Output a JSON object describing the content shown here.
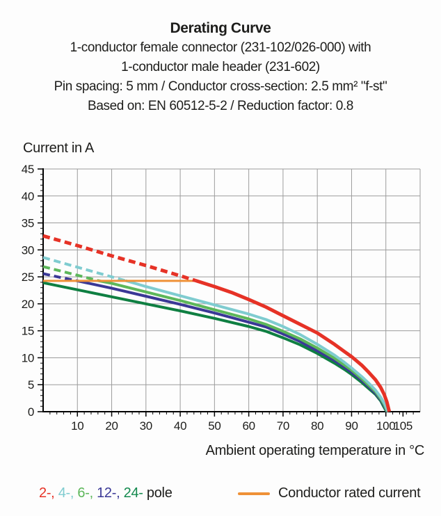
{
  "header": {
    "title": "Derating Curve",
    "lines": [
      "1-conductor female connector (231-102/026-000) with",
      "1-conductor male header (231-602)",
      "Pin spacing: 5 mm / Conductor cross-section: 2.5 mm² \"f-st\"",
      "Based on: EN 60512-5-2 / Reduction factor: 0.8"
    ]
  },
  "axes": {
    "y_label": "Current in A",
    "x_label": "Ambient operating temperature in °C"
  },
  "legend": {
    "pole_segments": [
      {
        "text": "2-, ",
        "color": "#e63226"
      },
      {
        "text": "4-, ",
        "color": "#7fccd0"
      },
      {
        "text": "6-, ",
        "color": "#5db75a"
      },
      {
        "text": "12-, ",
        "color": "#3a3896"
      },
      {
        "text": "24- ",
        "color": "#148a4e"
      }
    ],
    "pole_suffix": "pole",
    "rated_label": "Conductor rated current",
    "rated_color": "#ef9137"
  },
  "chart_data": {
    "type": "line",
    "title": "Derating Curve",
    "xlabel": "Ambient operating temperature in °C",
    "ylabel": "Current in A",
    "xlim": [
      0,
      110
    ],
    "ylim": [
      0,
      45
    ],
    "x_ticks": [
      10,
      20,
      30,
      40,
      50,
      60,
      70,
      80,
      90,
      100,
      105
    ],
    "y_ticks": [
      0,
      5,
      10,
      15,
      20,
      25,
      30,
      35,
      40,
      45
    ],
    "x_minor_step": 2,
    "y_minor_step": 1,
    "grid": true,
    "grid_color": "#9c9c9c",
    "rated_current": 24.25,
    "note": "dashed segments mark currents above the conductor rated current; dash_until is the °C where each curve meets the rated-current line",
    "series": [
      {
        "name": "24-pole",
        "color": "#0f7f42",
        "width": 4,
        "dash_until": null,
        "points": [
          [
            0,
            23.9
          ],
          [
            10,
            22.6
          ],
          [
            20,
            21.3
          ],
          [
            30,
            20.0
          ],
          [
            40,
            18.7
          ],
          [
            50,
            17.3
          ],
          [
            60,
            15.8
          ],
          [
            65,
            14.9
          ],
          [
            70,
            13.7
          ],
          [
            75,
            12.4
          ],
          [
            80,
            10.8
          ],
          [
            85,
            9.0
          ],
          [
            88,
            7.8
          ],
          [
            90,
            6.9
          ],
          [
            93,
            5.4
          ],
          [
            95,
            4.3
          ],
          [
            97,
            3.2
          ],
          [
            98.5,
            2.0
          ],
          [
            99.3,
            1.0
          ],
          [
            100.2,
            0
          ]
        ]
      },
      {
        "name": "12-pole",
        "color": "#3a3896",
        "width": 4,
        "dash_until": 10,
        "points": [
          [
            0,
            25.6
          ],
          [
            5,
            24.9
          ],
          [
            10,
            24.25
          ],
          [
            20,
            22.9
          ],
          [
            30,
            21.4
          ],
          [
            40,
            19.9
          ],
          [
            50,
            18.3
          ],
          [
            60,
            16.6
          ],
          [
            65,
            15.7
          ],
          [
            70,
            14.4
          ],
          [
            75,
            13.0
          ],
          [
            80,
            11.3
          ],
          [
            85,
            9.5
          ],
          [
            88,
            8.2
          ],
          [
            90,
            7.3
          ],
          [
            93,
            5.8
          ],
          [
            95,
            4.6
          ],
          [
            97,
            3.4
          ],
          [
            98.5,
            2.2
          ],
          [
            99.4,
            1.2
          ],
          [
            100.3,
            0
          ]
        ]
      },
      {
        "name": "6-pole",
        "color": "#5db75a",
        "width": 4,
        "dash_until": 16,
        "points": [
          [
            0,
            26.9
          ],
          [
            10,
            25.3
          ],
          [
            16,
            24.3
          ],
          [
            20,
            23.8
          ],
          [
            30,
            22.2
          ],
          [
            40,
            20.6
          ],
          [
            50,
            18.9
          ],
          [
            60,
            17.2
          ],
          [
            65,
            16.2
          ],
          [
            70,
            14.9
          ],
          [
            75,
            13.5
          ],
          [
            80,
            11.8
          ],
          [
            85,
            9.9
          ],
          [
            88,
            8.6
          ],
          [
            90,
            7.7
          ],
          [
            93,
            6.1
          ],
          [
            95,
            4.9
          ],
          [
            97,
            3.7
          ],
          [
            98.5,
            2.4
          ],
          [
            99.5,
            1.3
          ],
          [
            100.4,
            0
          ]
        ]
      },
      {
        "name": "4-pole",
        "color": "#7fccd0",
        "width": 4,
        "dash_until": 24,
        "points": [
          [
            0,
            28.6
          ],
          [
            10,
            26.8
          ],
          [
            20,
            25.0
          ],
          [
            24,
            24.3
          ],
          [
            30,
            23.2
          ],
          [
            40,
            21.5
          ],
          [
            50,
            19.8
          ],
          [
            60,
            18.1
          ],
          [
            65,
            17.1
          ],
          [
            70,
            15.8
          ],
          [
            75,
            14.3
          ],
          [
            80,
            12.5
          ],
          [
            85,
            10.5
          ],
          [
            88,
            9.1
          ],
          [
            90,
            8.1
          ],
          [
            93,
            6.5
          ],
          [
            95,
            5.3
          ],
          [
            97,
            4.0
          ],
          [
            98.5,
            2.7
          ],
          [
            99.6,
            1.5
          ],
          [
            100.6,
            0
          ]
        ]
      },
      {
        "name": "Conductor rated current",
        "color": "#ef9137",
        "width": 3,
        "dash_until": null,
        "points": [
          [
            0,
            24.25
          ],
          [
            44.5,
            24.25
          ]
        ]
      },
      {
        "name": "2-pole",
        "color": "#e63226",
        "width": 5,
        "dash_until": 44.5,
        "points": [
          [
            0,
            32.6
          ],
          [
            10,
            30.8
          ],
          [
            20,
            28.9
          ],
          [
            30,
            27.1
          ],
          [
            40,
            25.2
          ],
          [
            44.5,
            24.3
          ],
          [
            50,
            23.2
          ],
          [
            55,
            22.1
          ],
          [
            60,
            20.8
          ],
          [
            65,
            19.4
          ],
          [
            70,
            17.8
          ],
          [
            75,
            16.2
          ],
          [
            80,
            14.6
          ],
          [
            85,
            12.5
          ],
          [
            88,
            11.1
          ],
          [
            90,
            10.2
          ],
          [
            93,
            8.6
          ],
          [
            95,
            7.3
          ],
          [
            97,
            5.9
          ],
          [
            98.5,
            4.5
          ],
          [
            99.5,
            3.2
          ],
          [
            100.3,
            1.8
          ],
          [
            101,
            0
          ]
        ]
      }
    ]
  }
}
